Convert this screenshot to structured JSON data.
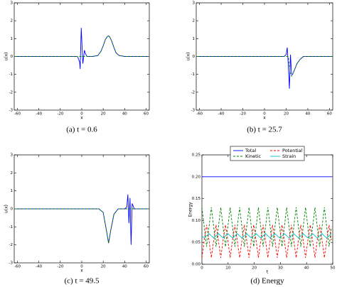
{
  "chart_data": [
    {
      "type": "line",
      "caption": "(a) t = 0.6",
      "xlabel": "x",
      "ylabel": "u(x)",
      "x": [
        -62,
        -10,
        -4,
        -2,
        -1.5,
        -0.5,
        1,
        2.5,
        3.5,
        5,
        10,
        15,
        18,
        20,
        22,
        24,
        25,
        26,
        28,
        30,
        32,
        35,
        40,
        62
      ],
      "series": [
        {
          "color": "#0000ff",
          "linestyle": "solid",
          "values": [
            0,
            0,
            0,
            -0.3,
            -0.7,
            1.6,
            -0.4,
            0.35,
            0.15,
            0,
            0,
            0.05,
            0.3,
            0.6,
            0.95,
            1.12,
            1.15,
            1.1,
            0.85,
            0.5,
            0.2,
            0.05,
            0,
            0
          ]
        },
        {
          "color": "#008000",
          "linestyle": "dashed",
          "values": [
            0,
            0,
            0,
            0,
            0,
            0,
            0,
            0,
            0,
            0,
            0,
            0.05,
            0.3,
            0.6,
            0.95,
            1.12,
            1.15,
            1.1,
            0.85,
            0.5,
            0.2,
            0.05,
            0,
            0
          ]
        }
      ],
      "xlim": [
        -63,
        63
      ],
      "ylim": [
        -3,
        3
      ],
      "xticks": [
        -60,
        -40,
        -20,
        0,
        20,
        40,
        60
      ],
      "yticks": [
        -3,
        -2,
        -1,
        0,
        1,
        2,
        3
      ]
    },
    {
      "type": "line",
      "caption": "(b) t = 25.7",
      "xlabel": "x",
      "ylabel": "u(x)",
      "x": [
        -62,
        10,
        18,
        20,
        21,
        22,
        23,
        24,
        25,
        26,
        28,
        30,
        33,
        36,
        62
      ],
      "series": [
        {
          "color": "#0000ff",
          "linestyle": "solid",
          "values": [
            0,
            0,
            0,
            0.1,
            0.5,
            -0.5,
            -1.8,
            0.1,
            -1.0,
            -1.0,
            -0.7,
            -0.4,
            -0.15,
            0,
            0
          ]
        },
        {
          "color": "#008000",
          "linestyle": "dashed",
          "values": [
            0,
            0,
            0,
            0,
            0,
            0,
            -0.5,
            -1.0,
            -1.1,
            -1.0,
            -0.7,
            -0.4,
            -0.15,
            0,
            0
          ]
        }
      ],
      "xlim": [
        -63,
        63
      ],
      "ylim": [
        -3,
        3
      ],
      "xticks": [
        -60,
        -40,
        -20,
        0,
        20,
        40,
        60
      ],
      "yticks": [
        -3,
        -2,
        -1,
        0,
        1,
        2,
        3
      ]
    },
    {
      "type": "line",
      "caption": "(c) t = 49.5",
      "xlabel": "x",
      "ylabel": "u(x)",
      "x": [
        -62,
        10,
        16,
        20,
        23,
        25,
        27,
        30,
        34,
        38,
        40,
        42,
        43,
        44,
        45,
        46,
        47,
        49,
        62
      ],
      "series": [
        {
          "color": "#0000ff",
          "linestyle": "solid",
          "values": [
            0,
            0,
            0,
            -0.2,
            -1.2,
            -1.9,
            -1.2,
            -0.3,
            0,
            0,
            0,
            0.1,
            0.8,
            -0.8,
            0.6,
            -2.0,
            0.3,
            0,
            0
          ]
        },
        {
          "color": "#008000",
          "linestyle": "dashed",
          "values": [
            0,
            0,
            0,
            -0.2,
            -1.2,
            -1.9,
            -1.2,
            -0.3,
            0,
            0,
            0,
            0,
            0,
            0,
            0,
            0,
            0,
            0,
            0
          ]
        }
      ],
      "xlim": [
        -63,
        63
      ],
      "ylim": [
        -3,
        3
      ],
      "xticks": [
        -60,
        -40,
        -20,
        0,
        20,
        40,
        60
      ],
      "yticks": [
        -3,
        -2,
        -1,
        0,
        1,
        2,
        3
      ]
    },
    {
      "type": "line",
      "caption": "(d) Energy",
      "xlabel": "t",
      "ylabel": "Energy",
      "legend": "upper center",
      "x": [
        0,
        0.9,
        1.8,
        2.7,
        3.6,
        4.5,
        5.4,
        6.3,
        7.2,
        8.1,
        9,
        9.9,
        10.8,
        11.7,
        12.6,
        13.5,
        14.4,
        15.3,
        16.2,
        17.1,
        18,
        18.9,
        19.8,
        20.7,
        21.6,
        22.5,
        23.4,
        24.3,
        25.2,
        26.1,
        27,
        27.9,
        28.8,
        29.7,
        30.6,
        31.5,
        32.4,
        33.3,
        34.2,
        35.1,
        36,
        36.9,
        37.8,
        38.7,
        39.6,
        40.5,
        41.4,
        42.3,
        43.2,
        44.1,
        45,
        45.9,
        46.8,
        47.7,
        48.6,
        49.5
      ],
      "series": [
        {
          "name": "Total",
          "color": "#0000ff",
          "linestyle": "solid",
          "values": [
            0.2,
            0.2,
            0.2,
            0.2,
            0.2,
            0.2,
            0.2,
            0.2,
            0.2,
            0.2,
            0.2,
            0.2,
            0.2,
            0.2,
            0.2,
            0.2,
            0.2,
            0.2,
            0.2,
            0.2,
            0.2,
            0.2,
            0.2,
            0.2,
            0.2,
            0.2,
            0.2,
            0.2,
            0.2,
            0.2,
            0.2,
            0.2,
            0.2,
            0.2,
            0.2,
            0.2,
            0.2,
            0.2,
            0.2,
            0.2,
            0.2,
            0.2,
            0.2,
            0.2,
            0.2,
            0.2,
            0.2,
            0.2,
            0.2,
            0.2,
            0.2,
            0.2,
            0.2,
            0.2,
            0.2,
            0.2
          ]
        },
        {
          "name": "Kinetic",
          "color": "#008000",
          "linestyle": "dashed",
          "values": [
            0.13,
            0.085,
            0.04,
            0.085,
            0.13,
            0.085,
            0.04,
            0.085,
            0.13,
            0.085,
            0.04,
            0.085,
            0.13,
            0.085,
            0.04,
            0.085,
            0.13,
            0.085,
            0.04,
            0.085,
            0.13,
            0.085,
            0.04,
            0.085,
            0.13,
            0.085,
            0.04,
            0.085,
            0.13,
            0.085,
            0.04,
            0.085,
            0.13,
            0.085,
            0.04,
            0.085,
            0.13,
            0.085,
            0.04,
            0.085,
            0.13,
            0.085,
            0.04,
            0.085,
            0.13,
            0.085,
            0.04,
            0.085,
            0.13,
            0.085,
            0.04,
            0.085,
            0.13,
            0.085,
            0.04,
            0.085
          ]
        },
        {
          "name": "Potential",
          "color": "#ff0000",
          "linestyle": "dashed",
          "values": [
            0.015,
            0.055,
            0.09,
            0.055,
            0.015,
            0.055,
            0.09,
            0.055,
            0.015,
            0.055,
            0.09,
            0.055,
            0.015,
            0.055,
            0.09,
            0.055,
            0.015,
            0.055,
            0.09,
            0.055,
            0.015,
            0.055,
            0.09,
            0.055,
            0.015,
            0.055,
            0.09,
            0.055,
            0.015,
            0.055,
            0.09,
            0.055,
            0.015,
            0.055,
            0.09,
            0.055,
            0.015,
            0.055,
            0.09,
            0.055,
            0.015,
            0.055,
            0.09,
            0.055,
            0.015,
            0.055,
            0.09,
            0.055,
            0.015,
            0.055,
            0.09,
            0.055,
            0.015,
            0.055,
            0.09,
            0.055
          ]
        },
        {
          "name": "Strain",
          "color": "#00bfbf",
          "linestyle": "solid",
          "values": [
            0.065,
            0.06,
            0.065,
            0.07,
            0.065,
            0.06,
            0.065,
            0.07,
            0.065,
            0.06,
            0.065,
            0.07,
            0.065,
            0.06,
            0.065,
            0.07,
            0.065,
            0.06,
            0.065,
            0.07,
            0.065,
            0.06,
            0.065,
            0.07,
            0.065,
            0.06,
            0.065,
            0.07,
            0.065,
            0.06,
            0.065,
            0.07,
            0.065,
            0.06,
            0.065,
            0.07,
            0.065,
            0.06,
            0.065,
            0.07,
            0.065,
            0.06,
            0.065,
            0.07,
            0.065,
            0.06,
            0.065,
            0.07,
            0.065,
            0.06,
            0.065,
            0.07,
            0.065,
            0.06,
            0.065,
            0.07
          ]
        }
      ],
      "xlim": [
        0,
        50
      ],
      "ylim": [
        0,
        0.25
      ],
      "xticks": [
        0,
        10,
        20,
        30,
        40,
        50
      ],
      "yticks": [
        {
          "value": 0,
          "label": "0.00"
        },
        {
          "value": 0.05,
          "label": "0.05"
        },
        {
          "value": 0.1,
          "label": "0.10"
        },
        {
          "value": 0.15,
          "label": "0.15"
        },
        {
          "value": 0.2,
          "label": "0.20"
        },
        {
          "value": 0.25,
          "label": "0.25"
        }
      ]
    }
  ]
}
